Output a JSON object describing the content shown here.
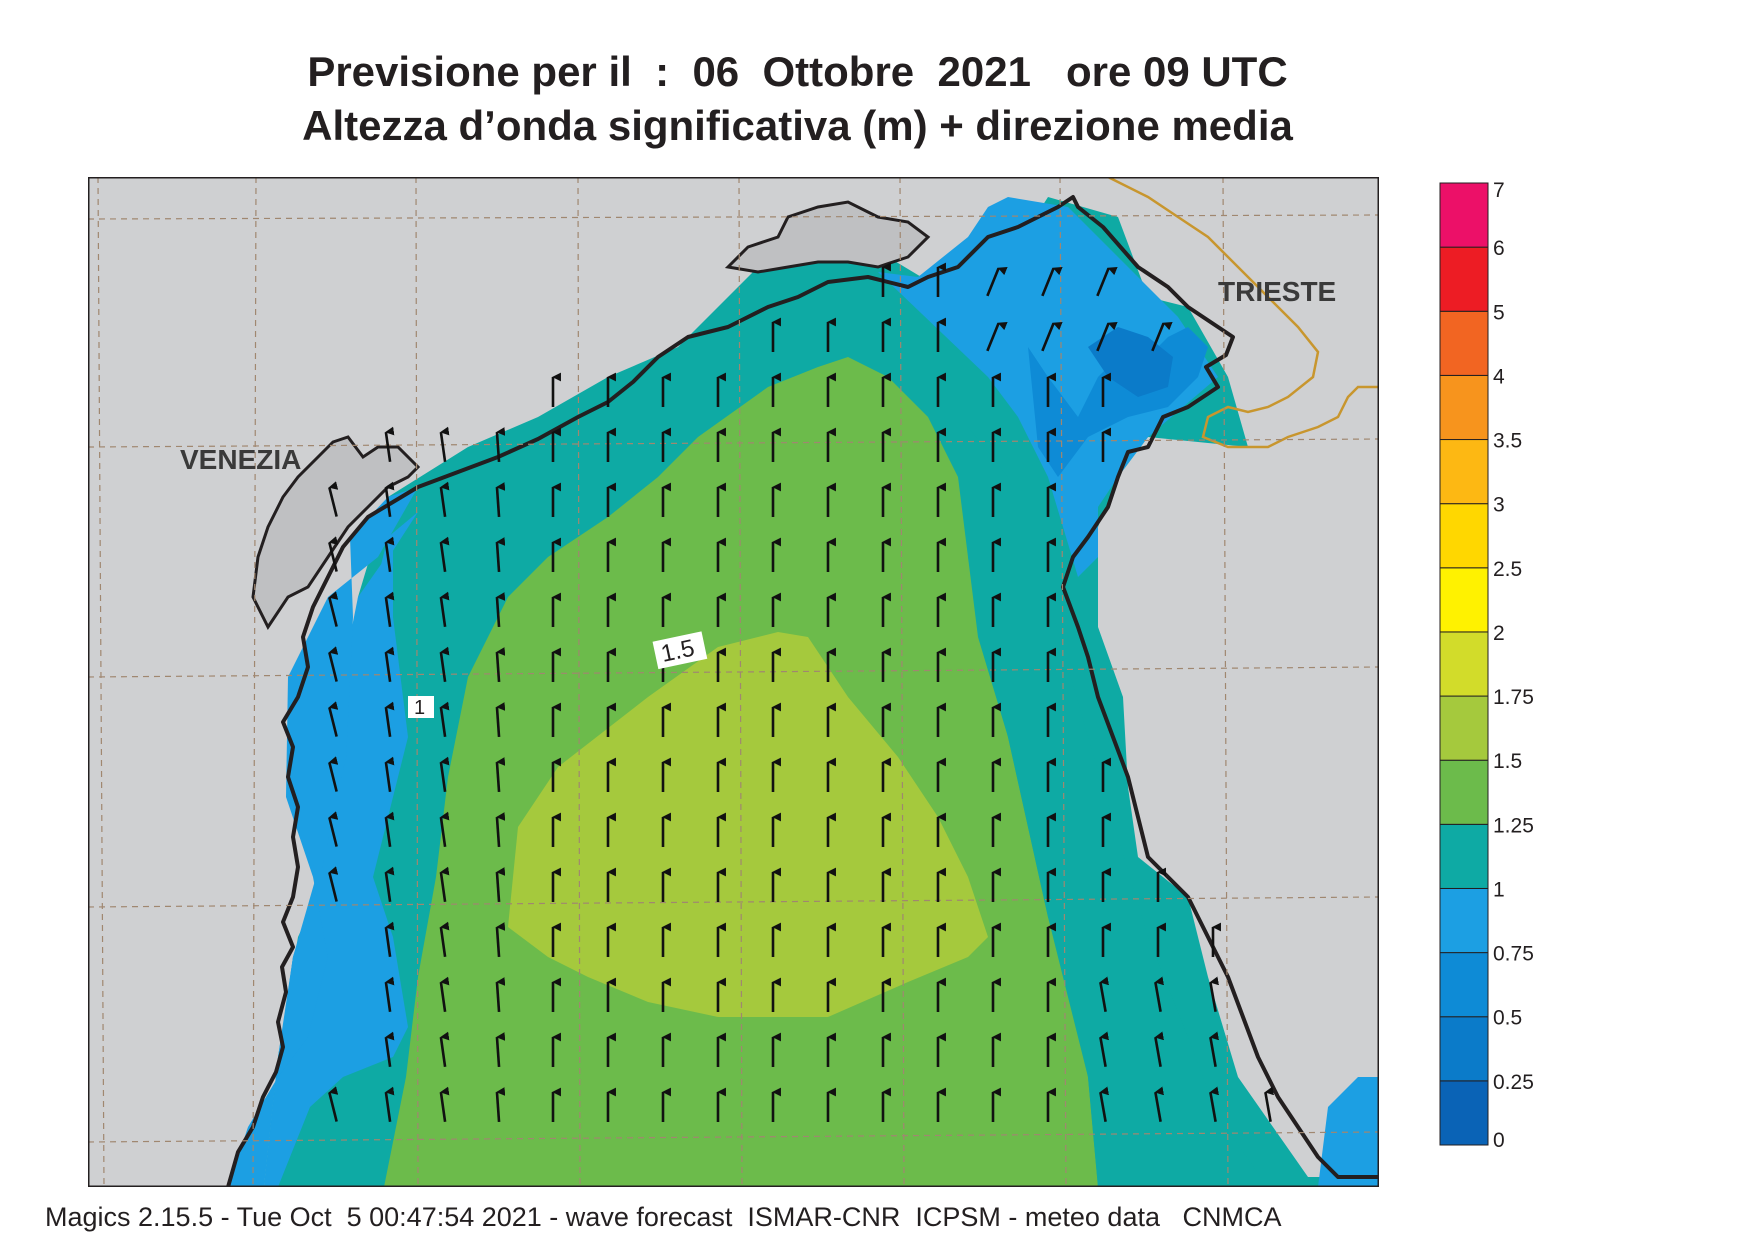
{
  "header": {
    "title_line1": "Previsione per il  :  06  Ottobre  2021   ore 09 UTC",
    "title_line2": "Altezza d’onda significativa (m) + direzione media"
  },
  "map": {
    "region": "Northern Adriatic Sea",
    "place_labels": {
      "venezia": "VENEZIA",
      "trieste": "TRIESTE"
    },
    "contour_labels": {
      "c15": "1.5",
      "c1": "1"
    },
    "land_color": "#cfd0d2",
    "coast_color": "#231f20",
    "border_color": "#c8962e",
    "grid_color": "#a08770",
    "arrow_direction": "north (waves heading N, slight NW tilt in west, NE tilt in northeast)"
  },
  "legend": {
    "levels": [
      "0",
      "0.25",
      "0.5",
      "0.75",
      "1",
      "1.25",
      "1.5",
      "1.75",
      "2",
      "2.5",
      "3",
      "3.5",
      "4",
      "5",
      "6",
      "7"
    ],
    "colors": [
      "#0a63b6",
      "#0b7bc9",
      "#0e8bd6",
      "#1c9fe3",
      "#0eaaa4",
      "#6cbb4b",
      "#a5c93d",
      "#d2dc2a",
      "#fff200",
      "#ffd700",
      "#fdb813",
      "#f7941d",
      "#f26522",
      "#ed1c24",
      "#ec1068"
    ]
  },
  "footer": {
    "text": "Magics 2.15.5 - Tue Oct  5 00:47:54 2021 - wave forecast  ISMAR-CNR  ICPSM - meteo data   CNMCA"
  }
}
